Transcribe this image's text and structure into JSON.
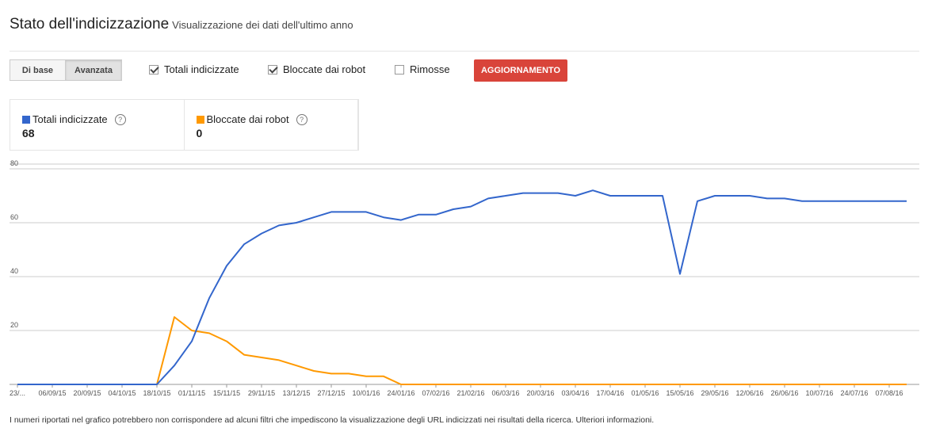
{
  "header": {
    "title": "Stato dell'indicizzazione",
    "subtitle": "Visualizzazione dei dati dell'ultimo anno"
  },
  "controls": {
    "buttons": [
      {
        "label": "Di base",
        "active": false
      },
      {
        "label": "Avanzata",
        "active": true
      }
    ],
    "checkboxes": [
      {
        "label": "Totali indicizzate",
        "checked": true
      },
      {
        "label": "Bloccate dai robot",
        "checked": true
      },
      {
        "label": "Rimosse",
        "checked": false
      }
    ],
    "update_button": "AGGIORNAMENTO"
  },
  "summary": [
    {
      "label": "Totali indicizzate",
      "value": 68
    },
    {
      "label": "Bloccate dai robot",
      "value": 0
    }
  ],
  "chart_data": {
    "type": "line",
    "categories": [
      "23/...",
      null,
      "06/09/15",
      null,
      "20/09/15",
      null,
      "04/10/15",
      null,
      "18/10/15",
      null,
      "01/11/15",
      null,
      "15/11/15",
      null,
      "29/11/15",
      null,
      "13/12/15",
      null,
      "27/12/15",
      null,
      "10/01/16",
      null,
      "24/01/16",
      null,
      "07/02/16",
      null,
      "21/02/16",
      null,
      "06/03/16",
      null,
      "20/03/16",
      null,
      "03/04/16",
      null,
      "17/04/16",
      null,
      "01/05/16",
      null,
      "15/05/16",
      null,
      "29/05/16",
      null,
      "12/06/16",
      null,
      "26/06/16",
      null,
      "10/07/16",
      null,
      "24/07/16",
      null,
      "07/08/16",
      null
    ],
    "series": [
      {
        "name": "Totali indicizzate",
        "color": "#3366cc",
        "values": [
          0,
          0,
          0,
          0,
          0,
          0,
          0,
          0,
          0,
          7,
          16,
          32,
          44,
          52,
          56,
          59,
          60,
          62,
          64,
          64,
          64,
          62,
          61,
          63,
          63,
          65,
          66,
          69,
          70,
          71,
          71,
          71,
          70,
          72,
          70,
          70,
          70,
          70,
          41,
          68,
          70,
          70,
          70,
          69,
          69,
          68,
          68,
          68,
          68,
          68,
          68,
          68
        ]
      },
      {
        "name": "Bloccate dai robot",
        "color": "#ff9900",
        "values": [
          0,
          0,
          0,
          0,
          0,
          0,
          0,
          0,
          0,
          25,
          20,
          19,
          16,
          11,
          10,
          9,
          7,
          5,
          4,
          4,
          3,
          3,
          0,
          0,
          0,
          0,
          0,
          0,
          0,
          0,
          0,
          0,
          0,
          0,
          0,
          0,
          0,
          0,
          0,
          0,
          0,
          0,
          0,
          0,
          0,
          0,
          0,
          0,
          0,
          0,
          0,
          0
        ]
      }
    ],
    "ylim": [
      0,
      80
    ],
    "yticks": [
      20,
      40,
      60,
      80
    ],
    "grid": true
  },
  "footer": "I numeri riportati nel grafico potrebbero non corrispondere ad alcuni filtri che impediscono la visualizzazione degli URL indicizzati nei risultati della ricerca. Ulteriori informazioni."
}
